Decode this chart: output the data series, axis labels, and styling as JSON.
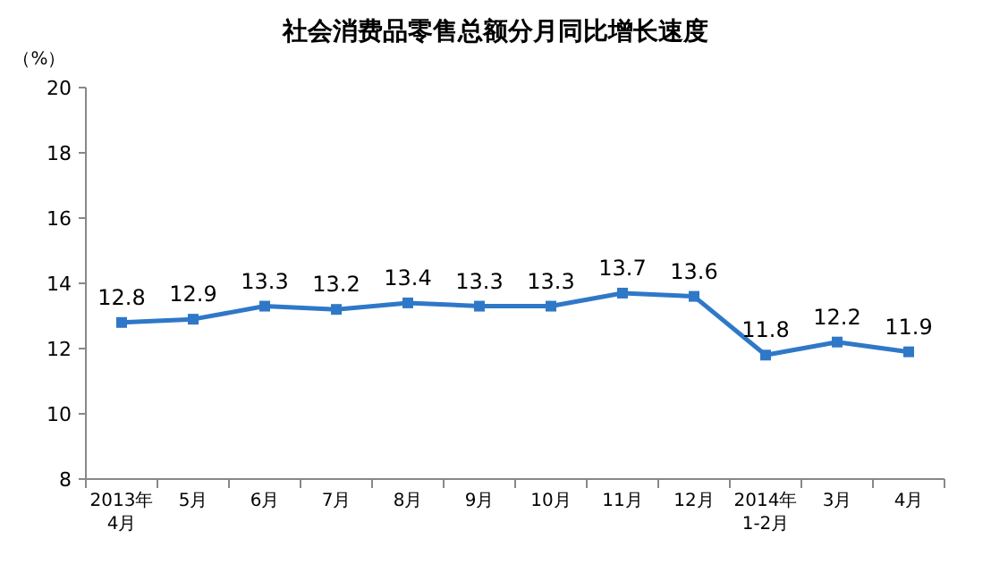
{
  "chart_data": {
    "type": "line",
    "title": "社会消费品零售总额分月同比增长速度",
    "ylabel": "（%）",
    "categories": [
      "2013年\n4月",
      "5月",
      "6月",
      "7月",
      "8月",
      "9月",
      "10月",
      "11月",
      "12月",
      "2014年\n1-2月",
      "3月",
      "4月"
    ],
    "series": [
      {
        "color": "#2f78c8",
        "values": [
          12.8,
          12.9,
          13.3,
          13.2,
          13.4,
          13.3,
          13.3,
          13.7,
          13.6,
          11.8,
          12.2,
          11.9
        ]
      }
    ],
    "ylim": [
      8,
      20
    ],
    "yticks": [
      8,
      10,
      12,
      14,
      16,
      18,
      20
    ],
    "grid": false,
    "marker": "square",
    "data_labels": true,
    "line_style": "solid"
  }
}
